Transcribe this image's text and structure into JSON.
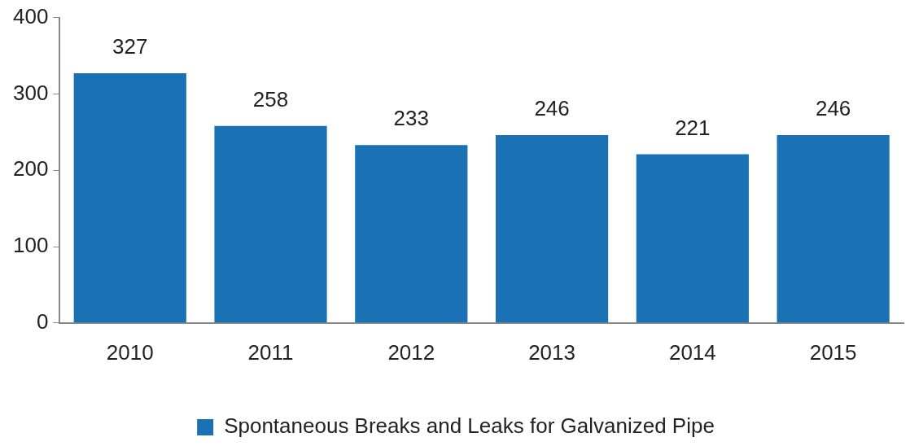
{
  "chart_data": {
    "type": "bar",
    "categories": [
      "2010",
      "2011",
      "2012",
      "2013",
      "2014",
      "2015"
    ],
    "series": [
      {
        "name": "Spontaneous Breaks and Leaks for Galvanized Pipe",
        "color": "#1a72b4",
        "values": [
          327,
          258,
          233,
          246,
          221,
          246
        ]
      }
    ],
    "ylim": [
      0,
      400
    ],
    "yticks": [
      0,
      100,
      200,
      300,
      400
    ],
    "grid": false,
    "legend": "bottom",
    "data_labels": true
  }
}
